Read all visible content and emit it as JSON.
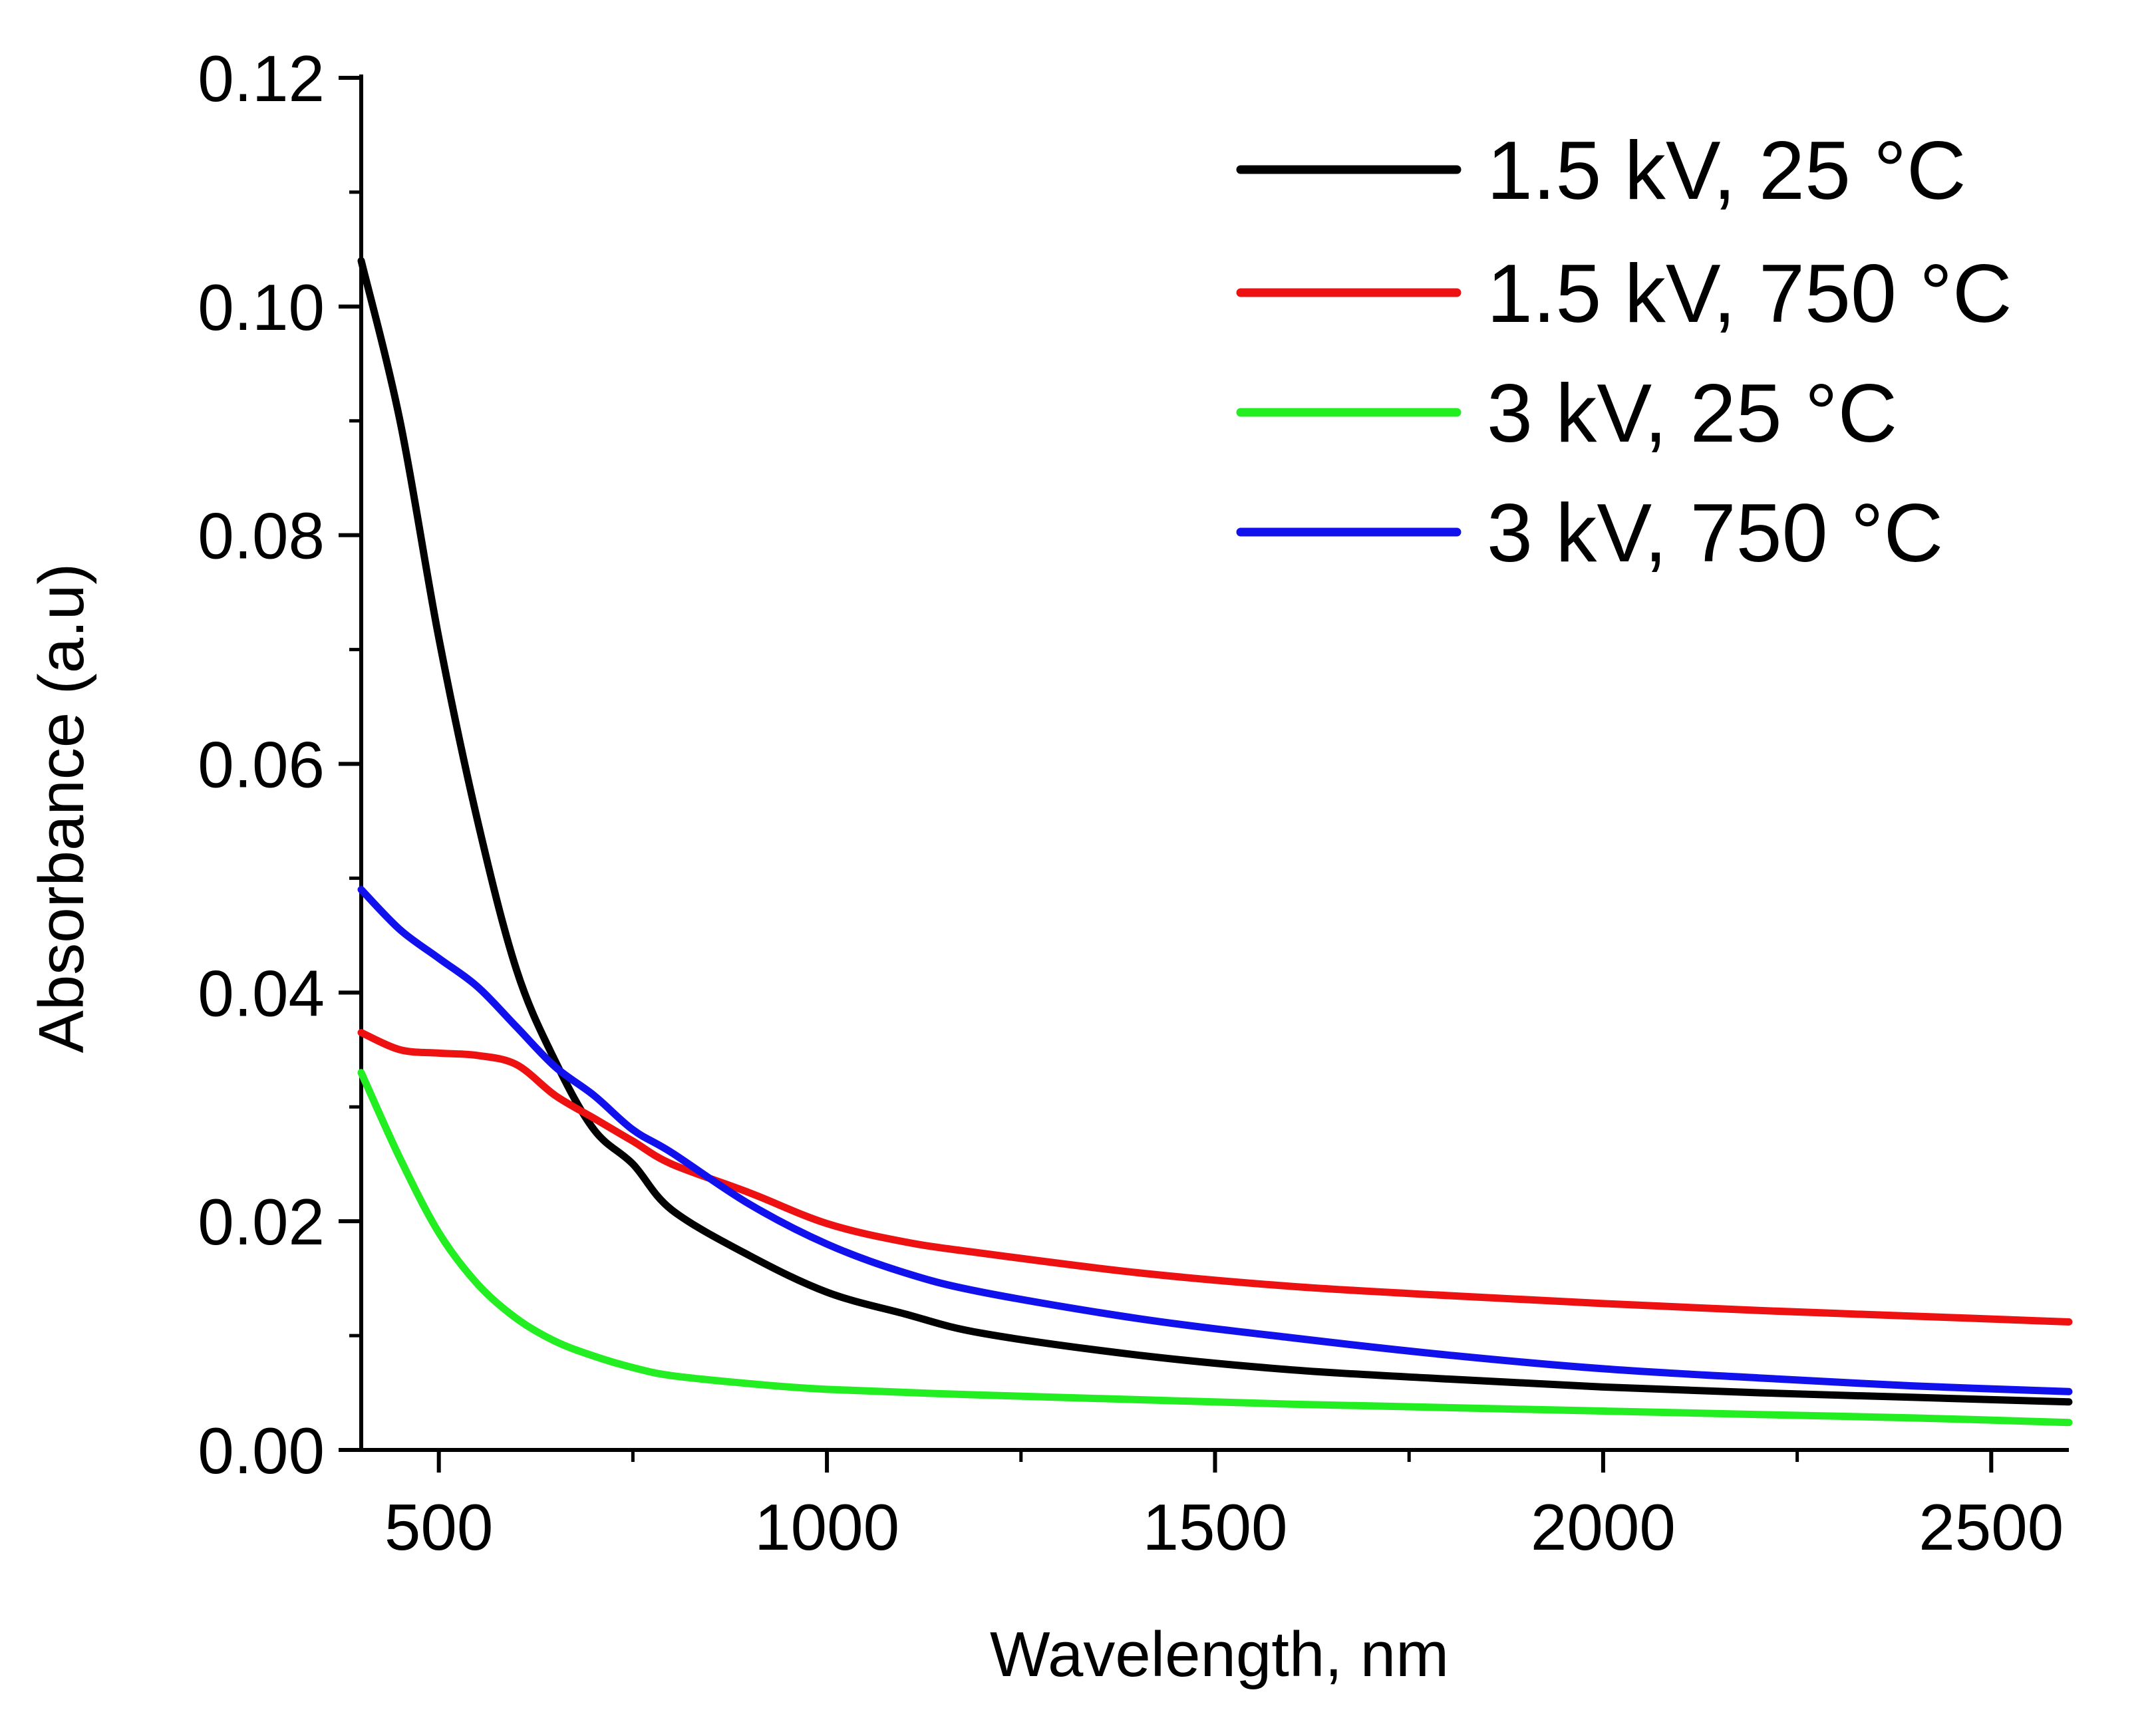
{
  "chart_data": {
    "type": "line",
    "title": "",
    "xlabel": "Wavelength, nm",
    "ylabel": "Absorbance (a.u)",
    "xlim": [
      400,
      2600
    ],
    "ylim": [
      0,
      0.12
    ],
    "x_ticks": [
      500,
      1000,
      1500,
      2000,
      2500
    ],
    "x_tick_labels": [
      "500",
      "1000",
      "1500",
      "2000",
      "2500"
    ],
    "x_minor_ticks": [
      750,
      1250,
      1750,
      2250
    ],
    "y_ticks": [
      0,
      0.02,
      0.04,
      0.06,
      0.08,
      0.1,
      0.12
    ],
    "y_tick_labels": [
      "0.00",
      "0.02",
      "0.04",
      "0.06",
      "0.08",
      "0.10",
      "0.12"
    ],
    "y_minor_ticks": [
      0.01,
      0.03,
      0.05,
      0.07,
      0.09,
      0.11
    ],
    "grid": false,
    "legend_position": "top-right",
    "series": [
      {
        "name": "1.5 kV, 25 °C",
        "color": "#000000",
        "x": [
          400,
          450,
          500,
          550,
          600,
          650,
          700,
          750,
          800,
          900,
          1000,
          1100,
          1200,
          1400,
          1600,
          1800,
          2000,
          2200,
          2400,
          2600
        ],
        "y": [
          0.104,
          0.09,
          0.071,
          0.055,
          0.042,
          0.034,
          0.028,
          0.025,
          0.021,
          0.017,
          0.0138,
          0.0119,
          0.0102,
          0.0083,
          0.007,
          0.0062,
          0.0055,
          0.005,
          0.0046,
          0.0042
        ]
      },
      {
        "name": "1.5 kV, 750 °C",
        "color": "#ee1111",
        "x": [
          400,
          450,
          500,
          550,
          600,
          650,
          700,
          750,
          800,
          900,
          1000,
          1100,
          1200,
          1400,
          1600,
          1800,
          2000,
          2200,
          2400,
          2600
        ],
        "y": [
          0.0365,
          0.035,
          0.0347,
          0.0345,
          0.0337,
          0.031,
          0.029,
          0.027,
          0.025,
          0.0225,
          0.0198,
          0.0182,
          0.0172,
          0.0155,
          0.0143,
          0.0135,
          0.0128,
          0.0122,
          0.0117,
          0.0112
        ]
      },
      {
        "name": "3 kV, 25 °C",
        "color": "#22ee22",
        "x": [
          400,
          450,
          500,
          550,
          600,
          650,
          700,
          750,
          800,
          900,
          1000,
          1200,
          1400,
          1600,
          1800,
          2000,
          2200,
          2400,
          2600
        ],
        "y": [
          0.033,
          0.0255,
          0.019,
          0.0145,
          0.0115,
          0.0095,
          0.0082,
          0.0072,
          0.0065,
          0.0058,
          0.0053,
          0.0048,
          0.0044,
          0.004,
          0.0037,
          0.0034,
          0.0031,
          0.0028,
          0.0024
        ]
      },
      {
        "name": "3 kV, 750 °C",
        "color": "#1111ee",
        "x": [
          400,
          450,
          500,
          550,
          600,
          650,
          700,
          750,
          800,
          900,
          1000,
          1100,
          1200,
          1400,
          1600,
          1800,
          2000,
          2200,
          2400,
          2600
        ],
        "y": [
          0.049,
          0.0455,
          0.043,
          0.0405,
          0.037,
          0.0335,
          0.031,
          0.028,
          0.026,
          0.0215,
          0.018,
          0.0155,
          0.0138,
          0.0115,
          0.0098,
          0.0083,
          0.0071,
          0.0063,
          0.0056,
          0.0051
        ]
      }
    ]
  }
}
